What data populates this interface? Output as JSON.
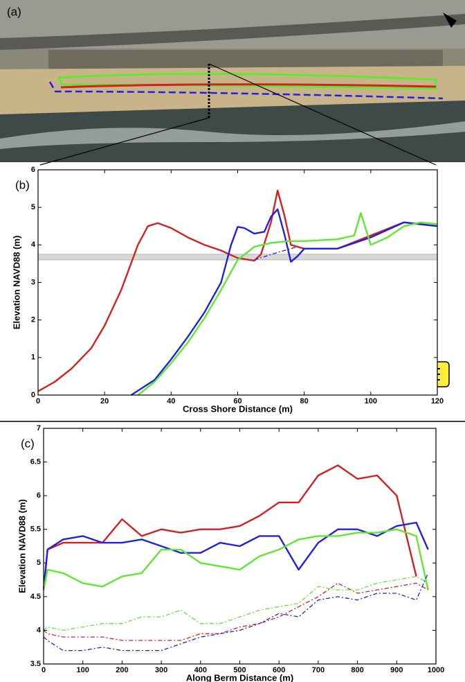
{
  "chart_data": [
    {
      "type": "image",
      "title": "(a)"
    },
    {
      "type": "line",
      "title": "(b)",
      "xlabel": "Cross Shore Distance (m)",
      "ylabel": "Elevation NAVD88 (m)",
      "xlim": [
        0,
        120
      ],
      "xticks": [
        0,
        20,
        40,
        60,
        80,
        100,
        120
      ],
      "ylim": [
        0,
        6
      ],
      "yticks": [
        0,
        1,
        2,
        3,
        4,
        5,
        6
      ],
      "band": [
        3.6,
        3.75
      ],
      "series": [
        {
          "color": "#d42020",
          "style": "solid",
          "x": [
            0,
            5,
            10,
            16,
            20,
            25,
            30,
            33,
            36,
            40,
            45,
            50,
            55,
            60,
            65,
            67,
            70,
            72,
            74,
            76,
            80,
            90,
            100,
            110,
            120
          ],
          "values": [
            0.1,
            0.35,
            0.7,
            1.25,
            1.85,
            2.8,
            4.0,
            4.5,
            4.58,
            4.45,
            4.2,
            4.0,
            3.85,
            3.65,
            3.58,
            3.75,
            4.6,
            5.45,
            4.8,
            4.0,
            3.9,
            3.9,
            4.25,
            4.6,
            4.5
          ]
        },
        {
          "color": "#2020e0",
          "style": "solid",
          "x": [
            28,
            35,
            40,
            45,
            50,
            55,
            58,
            60,
            62,
            65,
            68,
            70,
            72,
            74,
            76,
            78,
            80,
            90,
            100,
            110,
            120
          ],
          "values": [
            0,
            0.4,
            0.95,
            1.55,
            2.2,
            3.0,
            4.0,
            4.48,
            4.45,
            4.3,
            4.35,
            4.75,
            4.95,
            4.3,
            3.55,
            3.7,
            3.9,
            3.9,
            4.2,
            4.6,
            4.5
          ]
        },
        {
          "color": "#60e830",
          "style": "solid",
          "x": [
            30,
            35,
            40,
            45,
            50,
            55,
            60,
            65,
            70,
            75,
            80,
            90,
            95,
            97,
            100,
            105,
            110,
            115,
            120
          ],
          "values": [
            0,
            0.35,
            0.85,
            1.4,
            2.05,
            2.8,
            3.6,
            3.95,
            4.05,
            4.1,
            4.1,
            4.15,
            4.25,
            4.85,
            4.0,
            4.2,
            4.5,
            4.6,
            4.55
          ]
        },
        {
          "color": "#2020e0",
          "style": "dashed",
          "x": [
            65,
            72,
            78
          ],
          "values": [
            3.6,
            3.8,
            3.95
          ]
        }
      ]
    },
    {
      "type": "line",
      "title": "(c)",
      "xlabel": "Along Berm Distance (m)",
      "ylabel": "Elevation NAVD88 (m)",
      "xlim": [
        0,
        1000
      ],
      "xticks": [
        0,
        100,
        200,
        300,
        400,
        500,
        600,
        700,
        800,
        900,
        1000
      ],
      "ylim": [
        3.5,
        7
      ],
      "yticks": [
        3.5,
        4,
        4.5,
        5,
        5.5,
        6,
        6.5,
        7
      ],
      "x": [
        0,
        10,
        50,
        100,
        150,
        200,
        250,
        300,
        350,
        400,
        450,
        500,
        550,
        600,
        650,
        700,
        750,
        800,
        850,
        900,
        950,
        980
      ],
      "series": [
        {
          "color": "#d42020",
          "style": "solid",
          "values": [
            4.6,
            5.2,
            5.3,
            5.3,
            5.3,
            5.65,
            5.4,
            5.5,
            5.45,
            5.5,
            5.5,
            5.55,
            5.7,
            5.9,
            5.9,
            6.3,
            6.45,
            6.25,
            6.3,
            6.0,
            4.8,
            null
          ]
        },
        {
          "color": "#2020e0",
          "style": "solid",
          "values": [
            4.6,
            5.2,
            5.35,
            5.4,
            5.3,
            5.3,
            5.35,
            5.25,
            5.15,
            5.15,
            5.3,
            5.25,
            5.4,
            5.4,
            4.9,
            5.3,
            5.5,
            5.5,
            5.4,
            5.55,
            5.6,
            5.2
          ]
        },
        {
          "color": "#60e830",
          "style": "solid",
          "values": [
            4.6,
            4.9,
            4.85,
            4.7,
            4.65,
            4.8,
            4.85,
            5.2,
            5.2,
            5.0,
            4.95,
            4.9,
            5.1,
            5.2,
            5.35,
            5.4,
            5.4,
            5.45,
            5.45,
            5.5,
            5.4,
            4.6
          ]
        },
        {
          "color": "#d42020",
          "style": "dashed",
          "values": [
            4.0,
            3.95,
            3.9,
            3.9,
            3.9,
            3.85,
            3.85,
            3.85,
            3.85,
            3.95,
            3.95,
            4.05,
            4.1,
            4.2,
            4.35,
            4.5,
            4.7,
            4.55,
            4.6,
            4.65,
            4.7,
            4.6
          ]
        },
        {
          "color": "#2020e0",
          "style": "dashed",
          "values": [
            3.9,
            3.85,
            3.7,
            3.7,
            3.75,
            3.7,
            3.7,
            3.7,
            3.8,
            3.9,
            3.95,
            4.0,
            4.1,
            4.25,
            4.2,
            4.45,
            4.5,
            4.45,
            4.55,
            4.55,
            4.45,
            4.85
          ]
        },
        {
          "color": "#60e830",
          "style": "dashed",
          "values": [
            4.0,
            4.05,
            4.0,
            4.05,
            4.1,
            4.1,
            4.2,
            4.2,
            4.3,
            4.1,
            4.1,
            4.2,
            4.3,
            4.35,
            4.4,
            4.65,
            4.6,
            4.6,
            4.7,
            4.75,
            4.8,
            4.7
          ]
        }
      ]
    }
  ]
}
